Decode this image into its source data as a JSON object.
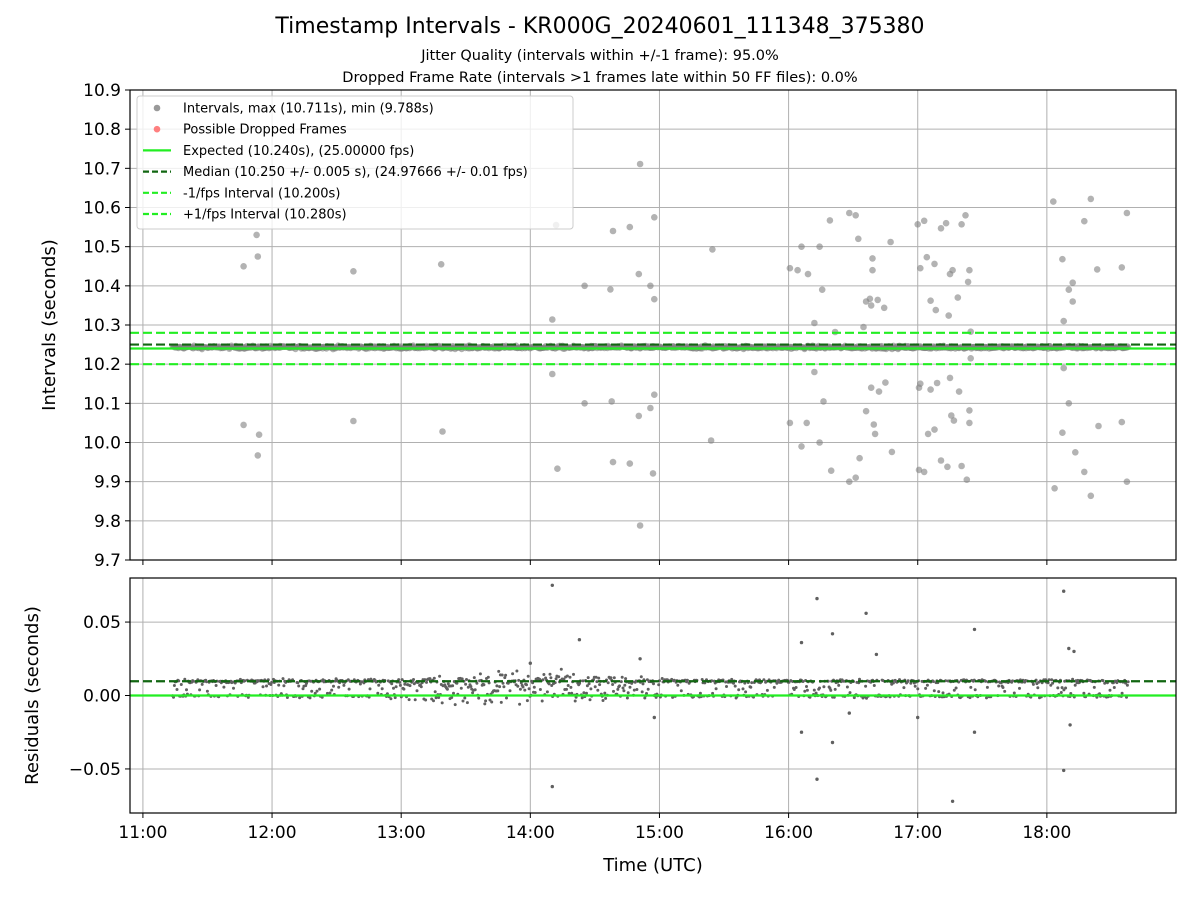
{
  "title": "Timestamp Intervals - KR000G_20240601_111348_375380",
  "subtitle_1": "Jitter Quality (intervals within +/-1 frame): 95.0%",
  "subtitle_2": "Dropped Frame Rate (intervals >1 frames late within 50 FF files): 0.0%",
  "colors": {
    "points": "#808080",
    "dropped": "#ff6060",
    "expected": "#22ee22",
    "median": "#116611",
    "fps_bound": "#22ee22",
    "grid": "#b0b0b0"
  },
  "chart_data": [
    {
      "type": "scatter",
      "ylabel": "Intervals (seconds)",
      "ylim": [
        9.7,
        10.9
      ],
      "yticks": [
        "9.7",
        "9.8",
        "9.9",
        "10.0",
        "10.1",
        "10.2",
        "10.3",
        "10.4",
        "10.5",
        "10.6",
        "10.7",
        "10.8",
        "10.9"
      ],
      "xlim_hours": [
        10.9,
        19.0
      ],
      "xticks_hours": [
        11,
        12,
        13,
        14,
        15,
        16,
        17,
        18
      ],
      "grid": true,
      "legend_placement": "upper-left",
      "legend": [
        {
          "label": "Intervals, max (10.711s), min (9.788s)",
          "marker": "dot",
          "color": "#808080"
        },
        {
          "label": "Possible Dropped Frames",
          "marker": "dot",
          "color": "#ff6060"
        },
        {
          "label": "Expected (10.240s), (25.00000 fps)",
          "marker": "line",
          "color": "#22ee22"
        },
        {
          "label": "Median (10.250 +/- 0.005 s), (24.97666 +/- 0.01 fps)",
          "marker": "dash",
          "color": "#116611"
        },
        {
          "label": "-1/fps Interval (10.200s)",
          "marker": "dash",
          "color": "#22ee22"
        },
        {
          "label": "+1/fps Interval (10.280s)",
          "marker": "dash",
          "color": "#22ee22"
        }
      ],
      "hlines": [
        {
          "name": "Expected",
          "y": 10.24,
          "style": "solid",
          "color": "#22ee22"
        },
        {
          "name": "Median",
          "y": 10.25,
          "style": "dashed",
          "color": "#116611"
        },
        {
          "name": "-1/fps Interval",
          "y": 10.2,
          "style": "dashed",
          "color": "#22ee22"
        },
        {
          "name": "+1/fps Interval",
          "y": 10.28,
          "style": "dashed",
          "color": "#22ee22"
        }
      ],
      "band": {
        "x_start_hours": 11.23,
        "x_end_hours": 18.63,
        "center": 10.243,
        "spread": 0.01
      },
      "outliers": [
        {
          "x": 11.78,
          "y": 10.45
        },
        {
          "x": 11.78,
          "y": 10.045
        },
        {
          "x": 11.88,
          "y": 10.53
        },
        {
          "x": 11.89,
          "y": 10.475
        },
        {
          "x": 11.9,
          "y": 10.02
        },
        {
          "x": 11.89,
          "y": 9.967
        },
        {
          "x": 12.63,
          "y": 10.437
        },
        {
          "x": 12.63,
          "y": 10.055
        },
        {
          "x": 13.31,
          "y": 10.455
        },
        {
          "x": 13.32,
          "y": 10.028
        },
        {
          "x": 14.17,
          "y": 10.314
        },
        {
          "x": 14.17,
          "y": 10.175
        },
        {
          "x": 14.2,
          "y": 10.555
        },
        {
          "x": 14.21,
          "y": 9.933
        },
        {
          "x": 14.42,
          "y": 10.4
        },
        {
          "x": 14.42,
          "y": 10.1
        },
        {
          "x": 14.62,
          "y": 10.391
        },
        {
          "x": 14.63,
          "y": 10.105
        },
        {
          "x": 14.64,
          "y": 10.54
        },
        {
          "x": 14.64,
          "y": 9.95
        },
        {
          "x": 14.77,
          "y": 10.55
        },
        {
          "x": 14.77,
          "y": 9.946
        },
        {
          "x": 14.85,
          "y": 10.711
        },
        {
          "x": 14.85,
          "y": 9.788
        },
        {
          "x": 14.84,
          "y": 10.43
        },
        {
          "x": 14.84,
          "y": 10.068
        },
        {
          "x": 14.93,
          "y": 10.4
        },
        {
          "x": 14.93,
          "y": 10.088
        },
        {
          "x": 14.96,
          "y": 10.575
        },
        {
          "x": 14.96,
          "y": 10.366
        },
        {
          "x": 14.96,
          "y": 10.122
        },
        {
          "x": 14.95,
          "y": 9.921
        },
        {
          "x": 15.41,
          "y": 10.493
        },
        {
          "x": 15.4,
          "y": 10.005
        },
        {
          "x": 16.01,
          "y": 10.445
        },
        {
          "x": 16.01,
          "y": 10.05
        },
        {
          "x": 16.07,
          "y": 10.44
        },
        {
          "x": 16.1,
          "y": 10.5
        },
        {
          "x": 16.1,
          "y": 9.99
        },
        {
          "x": 16.15,
          "y": 10.43
        },
        {
          "x": 16.14,
          "y": 10.05
        },
        {
          "x": 16.2,
          "y": 10.305
        },
        {
          "x": 16.2,
          "y": 10.18
        },
        {
          "x": 16.24,
          "y": 10.5
        },
        {
          "x": 16.24,
          "y": 10.0
        },
        {
          "x": 16.26,
          "y": 10.39
        },
        {
          "x": 16.27,
          "y": 10.105
        },
        {
          "x": 16.32,
          "y": 10.567
        },
        {
          "x": 16.33,
          "y": 9.928
        },
        {
          "x": 16.36,
          "y": 10.282
        },
        {
          "x": 16.47,
          "y": 10.586
        },
        {
          "x": 16.47,
          "y": 9.9
        },
        {
          "x": 16.52,
          "y": 10.58
        },
        {
          "x": 16.52,
          "y": 9.91
        },
        {
          "x": 16.54,
          "y": 10.52
        },
        {
          "x": 16.55,
          "y": 9.96
        },
        {
          "x": 16.58,
          "y": 10.295
        },
        {
          "x": 16.6,
          "y": 10.36
        },
        {
          "x": 16.6,
          "y": 10.08
        },
        {
          "x": 16.63,
          "y": 10.367
        },
        {
          "x": 16.64,
          "y": 10.35
        },
        {
          "x": 16.64,
          "y": 10.14
        },
        {
          "x": 16.65,
          "y": 10.47
        },
        {
          "x": 16.65,
          "y": 10.44
        },
        {
          "x": 16.66,
          "y": 10.046
        },
        {
          "x": 16.67,
          "y": 10.022
        },
        {
          "x": 16.69,
          "y": 10.364
        },
        {
          "x": 16.7,
          "y": 10.13
        },
        {
          "x": 16.74,
          "y": 10.344
        },
        {
          "x": 16.75,
          "y": 10.153
        },
        {
          "x": 16.79,
          "y": 10.512
        },
        {
          "x": 16.8,
          "y": 9.976
        },
        {
          "x": 17.0,
          "y": 10.557
        },
        {
          "x": 17.02,
          "y": 10.445
        },
        {
          "x": 17.02,
          "y": 10.15
        },
        {
          "x": 17.01,
          "y": 10.14
        },
        {
          "x": 17.01,
          "y": 9.93
        },
        {
          "x": 17.05,
          "y": 10.566
        },
        {
          "x": 17.05,
          "y": 9.925
        },
        {
          "x": 17.07,
          "y": 10.473
        },
        {
          "x": 17.08,
          "y": 10.022
        },
        {
          "x": 17.1,
          "y": 10.362
        },
        {
          "x": 17.1,
          "y": 10.135
        },
        {
          "x": 17.13,
          "y": 10.456
        },
        {
          "x": 17.13,
          "y": 10.033
        },
        {
          "x": 17.14,
          "y": 10.338
        },
        {
          "x": 17.15,
          "y": 10.152
        },
        {
          "x": 17.18,
          "y": 10.547
        },
        {
          "x": 17.18,
          "y": 9.954
        },
        {
          "x": 17.22,
          "y": 10.56
        },
        {
          "x": 17.23,
          "y": 9.938
        },
        {
          "x": 17.25,
          "y": 10.43
        },
        {
          "x": 17.24,
          "y": 10.324
        },
        {
          "x": 17.25,
          "y": 10.165
        },
        {
          "x": 17.26,
          "y": 10.069
        },
        {
          "x": 17.27,
          "y": 10.44
        },
        {
          "x": 17.28,
          "y": 10.056
        },
        {
          "x": 17.31,
          "y": 10.37
        },
        {
          "x": 17.32,
          "y": 10.13
        },
        {
          "x": 17.34,
          "y": 10.557
        },
        {
          "x": 17.34,
          "y": 9.94
        },
        {
          "x": 17.37,
          "y": 10.58
        },
        {
          "x": 17.38,
          "y": 9.905
        },
        {
          "x": 17.39,
          "y": 10.41
        },
        {
          "x": 17.4,
          "y": 10.44
        },
        {
          "x": 17.41,
          "y": 10.283
        },
        {
          "x": 17.41,
          "y": 10.215
        },
        {
          "x": 17.4,
          "y": 10.082
        },
        {
          "x": 17.4,
          "y": 10.05
        },
        {
          "x": 18.05,
          "y": 10.615
        },
        {
          "x": 18.06,
          "y": 9.883
        },
        {
          "x": 18.12,
          "y": 10.468
        },
        {
          "x": 18.12,
          "y": 10.025
        },
        {
          "x": 18.13,
          "y": 10.31
        },
        {
          "x": 18.13,
          "y": 10.19
        },
        {
          "x": 18.17,
          "y": 10.39
        },
        {
          "x": 18.17,
          "y": 10.1
        },
        {
          "x": 18.2,
          "y": 10.408
        },
        {
          "x": 18.2,
          "y": 10.36
        },
        {
          "x": 18.22,
          "y": 9.975
        },
        {
          "x": 18.29,
          "y": 10.565
        },
        {
          "x": 18.29,
          "y": 9.925
        },
        {
          "x": 18.34,
          "y": 10.622
        },
        {
          "x": 18.34,
          "y": 9.864
        },
        {
          "x": 18.39,
          "y": 10.442
        },
        {
          "x": 18.4,
          "y": 10.042
        },
        {
          "x": 18.58,
          "y": 10.447
        },
        {
          "x": 18.58,
          "y": 10.052
        },
        {
          "x": 18.62,
          "y": 10.586
        },
        {
          "x": 18.62,
          "y": 9.9
        }
      ]
    },
    {
      "type": "scatter",
      "ylabel": "Residuals (seconds)",
      "xlabel": "Time (UTC)",
      "ylim": [
        -0.08,
        0.08
      ],
      "yticks": [
        "−0.05",
        "0.00",
        "0.05"
      ],
      "ytick_values": [
        -0.05,
        0.0,
        0.05
      ],
      "xlim_hours": [
        10.9,
        19.0
      ],
      "xticks": [
        "11:00",
        "12:00",
        "13:00",
        "14:00",
        "15:00",
        "16:00",
        "17:00",
        "18:00"
      ],
      "grid": true,
      "hlines": [
        {
          "name": "Expected",
          "y": 0.0,
          "style": "solid",
          "color": "#22ee22"
        },
        {
          "name": "Median",
          "y": 0.0097,
          "style": "dashed",
          "color": "#116611"
        }
      ],
      "band": {
        "x_start_hours": 11.23,
        "x_end_hours": 18.63,
        "upper": 0.0097,
        "lower": -0.0003,
        "spread": 0.003
      },
      "outliers": [
        {
          "x": 14.17,
          "y": 0.075
        },
        {
          "x": 14.17,
          "y": -0.062
        },
        {
          "x": 14.38,
          "y": 0.038
        },
        {
          "x": 16.22,
          "y": 0.066
        },
        {
          "x": 16.1,
          "y": 0.036
        },
        {
          "x": 16.34,
          "y": 0.042
        },
        {
          "x": 16.1,
          "y": -0.025
        },
        {
          "x": 16.22,
          "y": -0.057
        },
        {
          "x": 16.34,
          "y": -0.032
        },
        {
          "x": 16.6,
          "y": 0.056
        },
        {
          "x": 16.68,
          "y": 0.028
        },
        {
          "x": 17.44,
          "y": 0.045
        },
        {
          "x": 17.27,
          "y": -0.072
        },
        {
          "x": 17.44,
          "y": -0.025
        },
        {
          "x": 18.13,
          "y": 0.071
        },
        {
          "x": 18.13,
          "y": -0.051
        },
        {
          "x": 18.17,
          "y": 0.032
        },
        {
          "x": 18.21,
          "y": 0.03
        },
        {
          "x": 18.18,
          "y": -0.02
        },
        {
          "x": 16.47,
          "y": -0.012
        },
        {
          "x": 14.96,
          "y": -0.015
        },
        {
          "x": 14.85,
          "y": 0.025
        },
        {
          "x": 17.0,
          "y": -0.015
        },
        {
          "x": 14.0,
          "y": 0.022
        }
      ]
    }
  ]
}
